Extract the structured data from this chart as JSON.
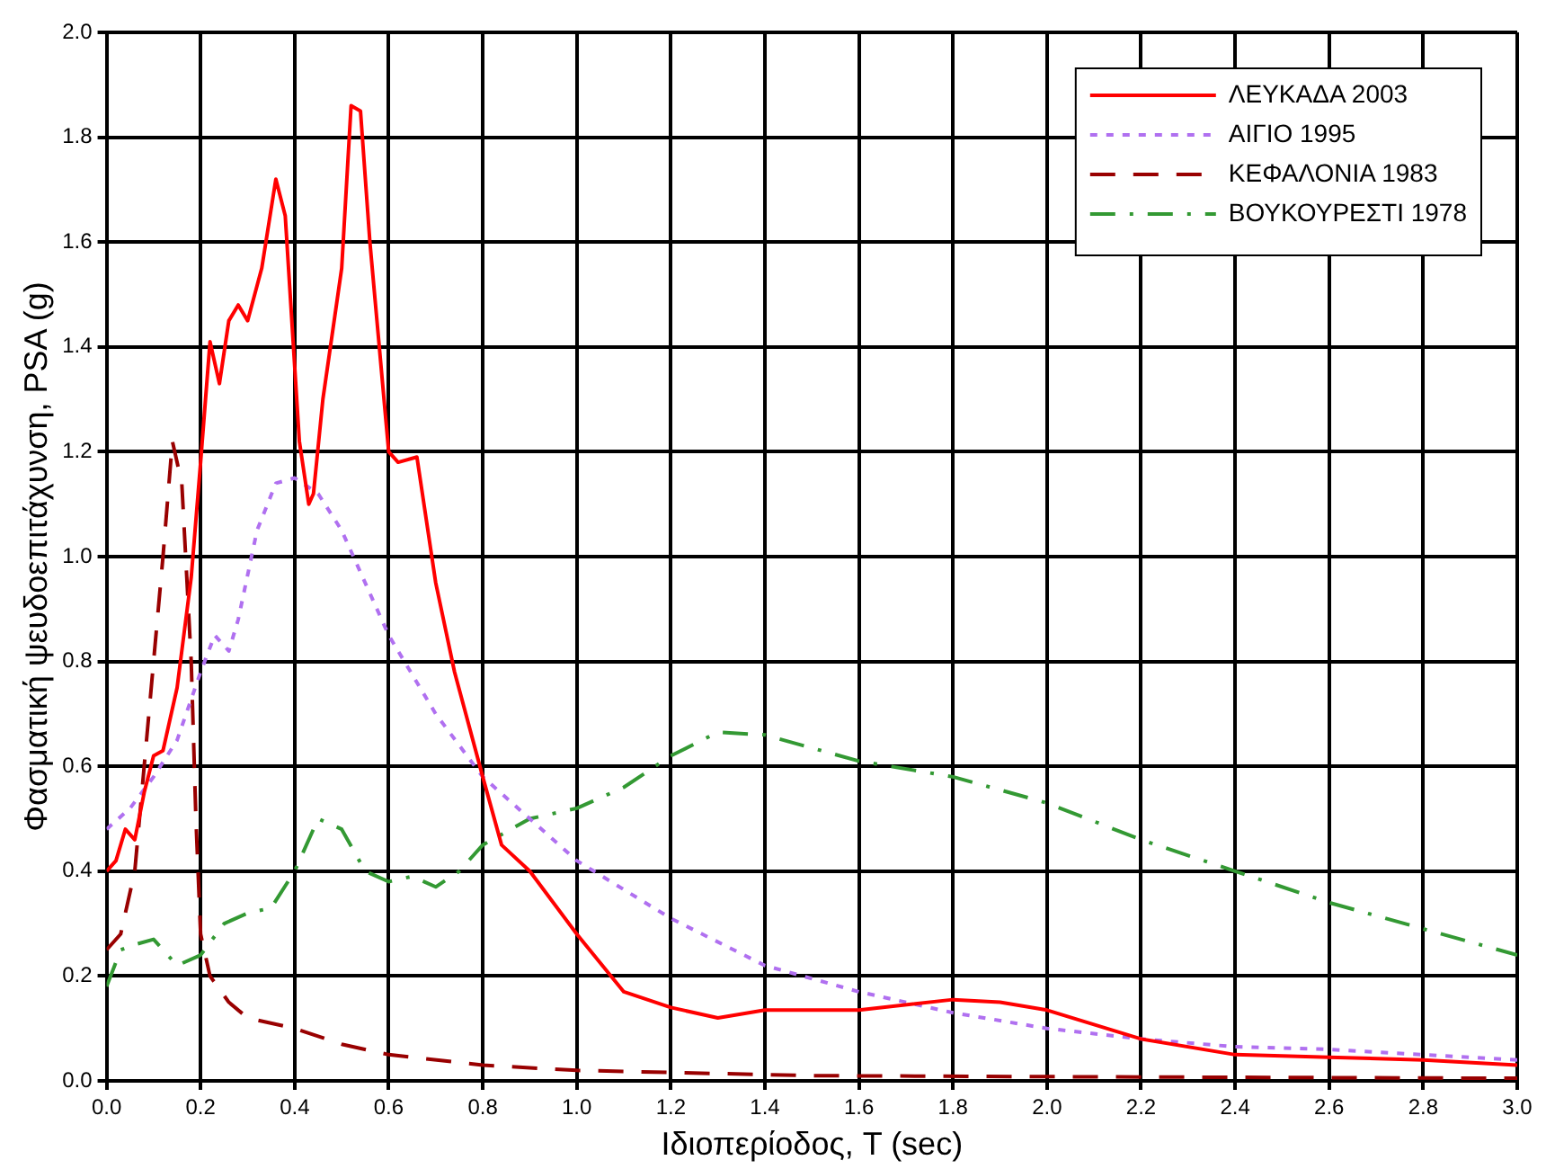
{
  "chart_data": {
    "type": "line",
    "xlabel": "Ιδιοπερίοδος, T (sec)",
    "ylabel": "Φασματική ψευδοεπιτάχυνση, PSA (g)",
    "xlim": [
      0,
      3
    ],
    "ylim": [
      0,
      2
    ],
    "xticks": [
      {
        "value": 0,
        "label": "0.0"
      },
      {
        "value": 0.2,
        "label": "0.2"
      },
      {
        "value": 0.4,
        "label": "0.4"
      },
      {
        "value": 0.6,
        "label": "0.6"
      },
      {
        "value": 0.8,
        "label": "0.8"
      },
      {
        "value": 1,
        "label": "1.0"
      },
      {
        "value": 1.2,
        "label": "1.2"
      },
      {
        "value": 1.4,
        "label": "1.4"
      },
      {
        "value": 1.6,
        "label": "1.6"
      },
      {
        "value": 1.8,
        "label": "1.8"
      },
      {
        "value": 2,
        "label": "2.0"
      },
      {
        "value": 2.2,
        "label": "2.2"
      },
      {
        "value": 2.4,
        "label": "2.4"
      },
      {
        "value": 2.6,
        "label": "2.6"
      },
      {
        "value": 2.8,
        "label": "2.8"
      },
      {
        "value": 3,
        "label": "3.0"
      }
    ],
    "yticks": [
      {
        "value": 0,
        "label": "0.0"
      },
      {
        "value": 0.2,
        "label": "0.2"
      },
      {
        "value": 0.4,
        "label": "0.4"
      },
      {
        "value": 0.6,
        "label": "0.6"
      },
      {
        "value": 0.8,
        "label": "0.8"
      },
      {
        "value": 1,
        "label": "1.0"
      },
      {
        "value": 1.2,
        "label": "1.2"
      },
      {
        "value": 1.4,
        "label": "1.4"
      },
      {
        "value": 1.6,
        "label": "1.6"
      },
      {
        "value": 1.8,
        "label": "1.8"
      },
      {
        "value": 2,
        "label": "2.0"
      }
    ],
    "grid": true,
    "legend": "top right",
    "marker": "none",
    "series": [
      {
        "name": "ΛΕΥΚΑΔΑ 2003",
        "color": "#ff0000",
        "line_style": "solid",
        "x": [
          0,
          0.02,
          0.04,
          0.06,
          0.08,
          0.1,
          0.12,
          0.15,
          0.18,
          0.2,
          0.22,
          0.24,
          0.26,
          0.28,
          0.3,
          0.33,
          0.36,
          0.38,
          0.41,
          0.43,
          0.44,
          0.46,
          0.5,
          0.52,
          0.54,
          0.56,
          0.6,
          0.62,
          0.66,
          0.7,
          0.74,
          0.8,
          0.84,
          0.9,
          1,
          1.1,
          1.2,
          1.3,
          1.4,
          1.6,
          1.8,
          1.9,
          2,
          2.2,
          2.4,
          2.6,
          2.8,
          3
        ],
        "values": [
          0.4,
          0.42,
          0.48,
          0.46,
          0.55,
          0.62,
          0.63,
          0.75,
          0.96,
          1.18,
          1.41,
          1.33,
          1.45,
          1.48,
          1.45,
          1.55,
          1.72,
          1.65,
          1.22,
          1.1,
          1.12,
          1.3,
          1.55,
          1.86,
          1.85,
          1.6,
          1.2,
          1.18,
          1.19,
          0.95,
          0.78,
          0.58,
          0.45,
          0.4,
          0.28,
          0.17,
          0.14,
          0.12,
          0.135,
          0.135,
          0.155,
          0.15,
          0.135,
          0.08,
          0.05,
          0.045,
          0.04,
          0.03
        ]
      },
      {
        "name": "ΑΙΓΙΟ 1995",
        "color": "#b070f0",
        "line_style": "dotted",
        "x": [
          0,
          0.05,
          0.1,
          0.15,
          0.2,
          0.23,
          0.26,
          0.28,
          0.32,
          0.36,
          0.4,
          0.45,
          0.5,
          0.55,
          0.6,
          0.7,
          0.8,
          0.9,
          1,
          1.2,
          1.4,
          1.6,
          1.8,
          2,
          2.2,
          2.4,
          2.6,
          2.8,
          3
        ],
        "values": [
          0.48,
          0.52,
          0.58,
          0.65,
          0.78,
          0.85,
          0.82,
          0.88,
          1.05,
          1.14,
          1.15,
          1.12,
          1.05,
          0.95,
          0.85,
          0.7,
          0.58,
          0.5,
          0.42,
          0.31,
          0.22,
          0.17,
          0.13,
          0.1,
          0.08,
          0.065,
          0.06,
          0.05,
          0.04
        ]
      },
      {
        "name": "ΚΕΦΑΛΟΝΙΑ 1983",
        "color": "#990000",
        "line_style": "dashed",
        "x": [
          0,
          0.03,
          0.06,
          0.09,
          0.12,
          0.14,
          0.16,
          0.18,
          0.19,
          0.2,
          0.22,
          0.26,
          0.3,
          0.4,
          0.5,
          0.6,
          0.8,
          1,
          1.5,
          2,
          3
        ],
        "values": [
          0.25,
          0.28,
          0.4,
          0.7,
          1,
          1.22,
          1.14,
          0.8,
          0.5,
          0.28,
          0.2,
          0.15,
          0.12,
          0.1,
          0.07,
          0.05,
          0.03,
          0.02,
          0.01,
          0.008,
          0.005
        ]
      },
      {
        "name": "ΒΟΥΚΟΥΡΕΣΤΙ 1978",
        "color": "#339933",
        "line_style": "dashdot",
        "x": [
          0,
          0.03,
          0.06,
          0.1,
          0.15,
          0.2,
          0.25,
          0.3,
          0.35,
          0.4,
          0.45,
          0.5,
          0.55,
          0.6,
          0.65,
          0.7,
          0.75,
          0.8,
          0.9,
          1,
          1.1,
          1.2,
          1.3,
          1.4,
          1.6,
          1.8,
          2,
          2.2,
          2.4,
          2.6,
          2.8,
          3
        ],
        "values": [
          0.18,
          0.25,
          0.26,
          0.27,
          0.22,
          0.24,
          0.3,
          0.32,
          0.33,
          0.4,
          0.5,
          0.48,
          0.4,
          0.38,
          0.39,
          0.37,
          0.4,
          0.45,
          0.5,
          0.52,
          0.56,
          0.62,
          0.665,
          0.66,
          0.61,
          0.58,
          0.53,
          0.46,
          0.4,
          0.34,
          0.29,
          0.24
        ]
      }
    ]
  }
}
